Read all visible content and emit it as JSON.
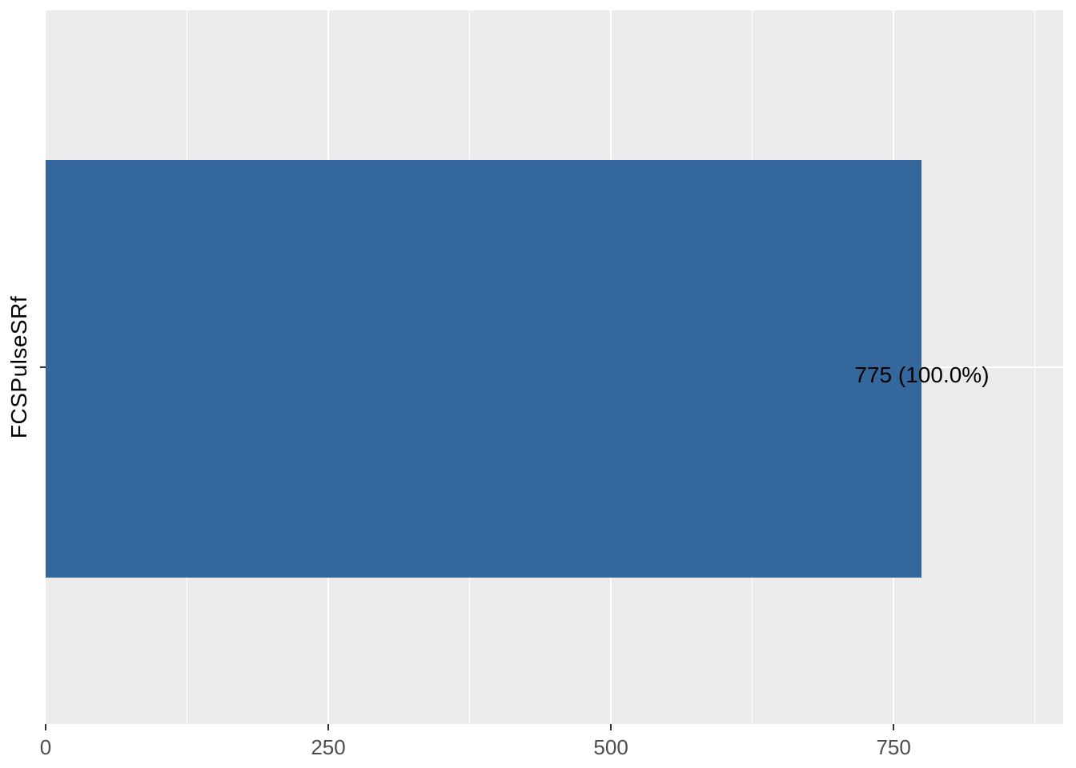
{
  "chart_data": {
    "type": "bar",
    "orientation": "horizontal",
    "title": "",
    "xlabel": "",
    "ylabel": "FCSPulseSRf",
    "categories": [
      "FCSPulseSRf"
    ],
    "values": [
      775
    ],
    "bar_labels": [
      "775 (100.0%)"
    ],
    "percentages": [
      100.0
    ],
    "xlim": [
      0,
      900
    ],
    "x_major_ticks": [
      0,
      250,
      500,
      750
    ],
    "x_minor_ticks": [
      125,
      375,
      625,
      875
    ],
    "grid": true,
    "legend": false,
    "theme": "ggplot2 theme_grey",
    "colors": {
      "bar": "#34689C",
      "panel_background": "#EBEBEB",
      "gridline": "#FFFFFF",
      "tick_label": "#4D4D4D",
      "tick_mark": "#333333",
      "axis_title": "#000000",
      "bar_label": "#000000",
      "figure_background": "#FFFFFF"
    }
  }
}
